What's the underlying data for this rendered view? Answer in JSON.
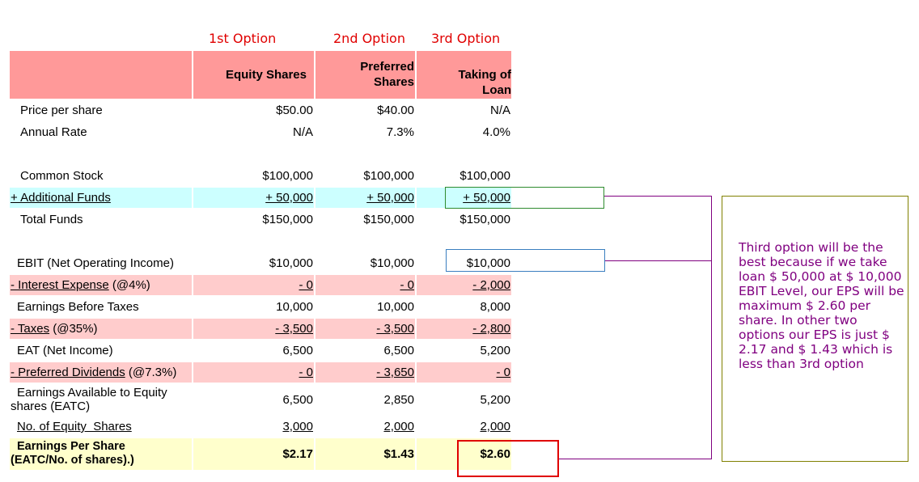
{
  "options": {
    "first": "1st Option",
    "second": "2nd Option",
    "third": "3rd Option"
  },
  "headers": {
    "equity": "Equity Shares",
    "preferred_line1": "Preferred",
    "preferred_line2": "Shares",
    "loan_line1": "Taking of",
    "loan_line2": "Loan"
  },
  "rows": {
    "price_per_share": {
      "label": "Price per share",
      "v1": "$50.00",
      "v2": "$40.00",
      "v3": "N/A"
    },
    "annual_rate": {
      "label": "Annual Rate",
      "v1": "N/A",
      "v2": "7.3%",
      "v3": "4.0%"
    },
    "common_stock": {
      "label": "Common Stock",
      "v1": "$100,000",
      "v2": "$100,000",
      "v3": "$100,000"
    },
    "additional_funds": {
      "label": "+ Additional Funds",
      "v1": "+ 50,000",
      "v2": "+ 50,000",
      "v3": "+ 50,000"
    },
    "total_funds": {
      "label": "Total Funds",
      "v1": "$150,000",
      "v2": "$150,000",
      "v3": "$150,000"
    },
    "ebit": {
      "label": "EBIT (Net Operating Income)",
      "v1": "$10,000",
      "v2": "$10,000",
      "v3": "$10,000"
    },
    "interest_expense": {
      "label_u": "- Interest Expense",
      "label_rest": " (@4%)",
      "v1": "- 0",
      "v2": "- 0",
      "v3": "- 2,000"
    },
    "ebt": {
      "label": "Earnings Before Taxes",
      "v1": "10,000",
      "v2": "10,000",
      "v3": "8,000"
    },
    "taxes": {
      "label_u": "- Taxes",
      "label_rest": " (@35%)",
      "v1": "- 3,500",
      "v2": "- 3,500",
      "v3": "- 2,800"
    },
    "eat": {
      "label": "EAT (Net Income)",
      "v1": "6,500",
      "v2": "6,500",
      "v3": "5,200"
    },
    "preferred_dividends": {
      "label_u": "- Preferred Dividends",
      "label_rest": " (@7.3%)",
      "v1": "- 0",
      "v2": "- 3,650",
      "v3": "- 0"
    },
    "eatc": {
      "label_line1": "Earnings Available to Equity",
      "label_line2": "shares (EATC)",
      "v1": "6,500",
      "v2": "2,850",
      "v3": "5,200"
    },
    "equity_shares": {
      "label": "No. of Equity  Shares",
      "v1": "3,000",
      "v2": "2,000",
      "v3": "2,000"
    },
    "eps": {
      "label_line1": "Earnings Per Share",
      "label_line2": "(EATC/No. of shares).)",
      "v1": "$2.17",
      "v2": "$1.43",
      "v3": "$2.60"
    }
  },
  "note": "Third option will be the best because if we take loan $ 50,000 at $ 10,000 EBIT Level, our EPS will be maximum $ 2.60 per share. In other two options our EPS is just $ 2.17 and $ 1.43 which is less than 3rd option",
  "colors": {
    "header_fill": "#ff9999",
    "cyan_fill": "#ccffff",
    "pink_fill": "#ffcccc",
    "yellow_fill": "#ffffcc",
    "option_text": "#e00000",
    "note_text": "#800080",
    "note_border": "#808000",
    "connector_line": "#800080",
    "funds_box_border": "#2e8b2e",
    "ebit_box_border": "#3a7ebf",
    "eps_box_border": "#e00000"
  }
}
